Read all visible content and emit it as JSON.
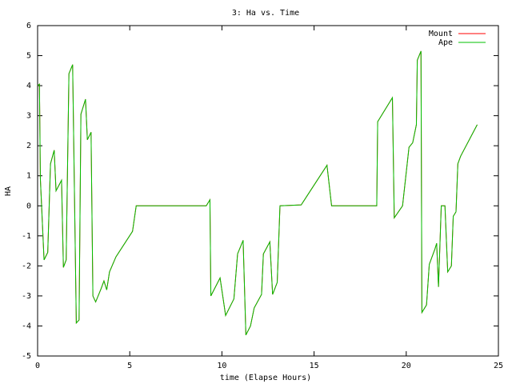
{
  "chart_data": {
    "type": "line",
    "title": "3: Ha vs. Time",
    "x_label": "time (Elapse Hours)",
    "y_label": "HA",
    "x": [
      0,
      0.1,
      0.15,
      0.35,
      0.55,
      0.7,
      0.9,
      1.0,
      1.3,
      1.4,
      1.55,
      1.7,
      1.9,
      2.1,
      2.25,
      2.35,
      2.6,
      2.7,
      2.9,
      3.0,
      3.15,
      3.45,
      3.6,
      3.75,
      3.9,
      4.25,
      5.15,
      5.35,
      9.15,
      9.35,
      9.4,
      9.9,
      10.2,
      10.65,
      10.85,
      11.15,
      11.3,
      11.55,
      11.75,
      12.15,
      12.25,
      12.6,
      12.75,
      13.0,
      13.15,
      14.3,
      15.7,
      15.95,
      18.4,
      18.45,
      19.25,
      19.35,
      19.8,
      20.15,
      20.35,
      20.55,
      20.6,
      20.8,
      20.85,
      21.1,
      21.25,
      21.55,
      21.65,
      21.75,
      21.9,
      22.1,
      22.25,
      22.45,
      22.55,
      22.7,
      22.8,
      22.95,
      23.85
    ],
    "series": [
      {
        "name": "Mount",
        "color": "#ff0000",
        "values": [
          4,
          4.05,
          0.9,
          -1.8,
          -1.55,
          1.4,
          1.85,
          0.5,
          0.85,
          -2.05,
          -1.8,
          4.4,
          4.7,
          -3.9,
          -3.8,
          3.05,
          3.55,
          2.2,
          2.45,
          -3.0,
          -3.2,
          -2.75,
          -2.5,
          -2.8,
          -2.2,
          -1.7,
          -0.85,
          0,
          0,
          0.2,
          -3.0,
          -2.4,
          -3.65,
          -3.1,
          -1.6,
          -1.15,
          -4.3,
          -4.0,
          -3.4,
          -2.95,
          -1.6,
          -1.2,
          -2.95,
          -2.55,
          0,
          0.03,
          1.35,
          0,
          0,
          2.8,
          3.6,
          -0.4,
          0,
          1.95,
          2.1,
          2.7,
          4.85,
          5.15,
          -3.55,
          -3.3,
          -1.95,
          -1.45,
          -1.25,
          -2.7,
          0,
          0,
          -2.2,
          -2.0,
          -0.35,
          -0.2,
          1.4,
          1.65,
          2.7
        ]
      },
      {
        "name": "Ape",
        "color": "#00c000",
        "values": [
          4,
          4.05,
          0.9,
          -1.8,
          -1.55,
          1.4,
          1.85,
          0.5,
          0.85,
          -2.05,
          -1.8,
          4.4,
          4.7,
          -3.9,
          -3.8,
          3.05,
          3.55,
          2.2,
          2.45,
          -3.0,
          -3.2,
          -2.75,
          -2.5,
          -2.8,
          -2.2,
          -1.7,
          -0.85,
          0,
          0,
          0.2,
          -3.0,
          -2.4,
          -3.65,
          -3.1,
          -1.6,
          -1.15,
          -4.3,
          -4.0,
          -3.4,
          -2.95,
          -1.6,
          -1.2,
          -2.95,
          -2.55,
          0,
          0.03,
          1.35,
          0,
          0,
          2.8,
          3.6,
          -0.4,
          0,
          1.95,
          2.1,
          2.7,
          4.85,
          5.15,
          -3.55,
          -3.3,
          -1.95,
          -1.45,
          -1.25,
          -2.7,
          0,
          0,
          -2.2,
          -2.0,
          -0.35,
          -0.2,
          1.4,
          1.65,
          2.7
        ]
      }
    ],
    "xlim": [
      0,
      25
    ],
    "xticks": [
      0,
      5,
      10,
      15,
      20,
      25
    ],
    "ylim": [
      -5,
      6
    ],
    "yticks": [
      -5,
      -4,
      -3,
      -2,
      -1,
      0,
      1,
      2,
      3,
      4,
      5,
      6
    ],
    "legend": "top-right"
  }
}
